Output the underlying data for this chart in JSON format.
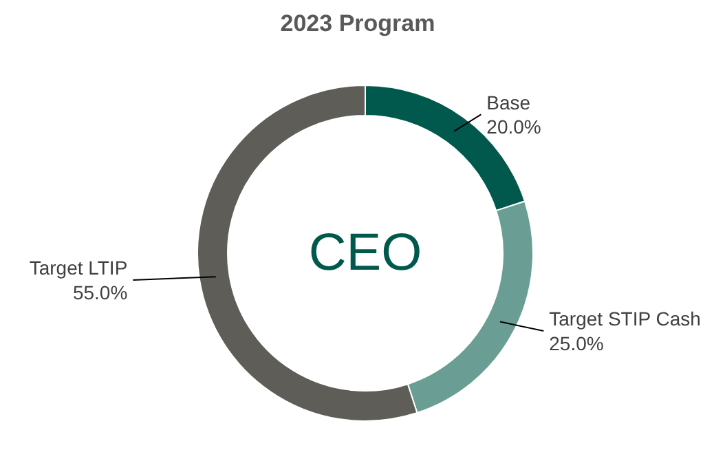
{
  "chart_data": {
    "type": "donut",
    "title": "2023 Program",
    "categories": [
      "Base",
      "Target STIP Cash",
      "Target LTIP"
    ],
    "values": [
      20,
      25,
      55
    ],
    "colors": [
      "#00594c",
      "#6a9e95",
      "#5f5d57"
    ],
    "value_labels": [
      "20.0%",
      "25.0%",
      "55.0%"
    ],
    "annotations": [
      "CEO"
    ]
  }
}
